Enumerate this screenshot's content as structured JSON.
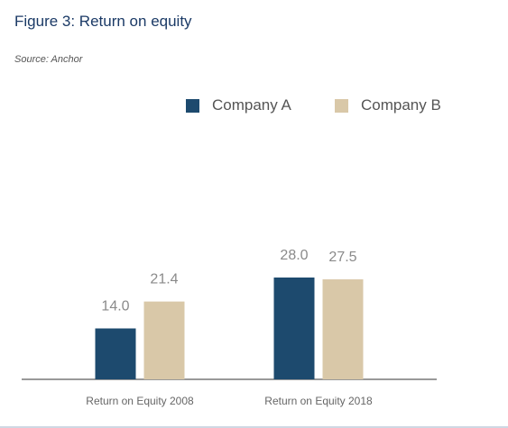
{
  "figure": {
    "title": "Figure 3: Return on equity",
    "source": "Source: Anchor"
  },
  "chart_data": {
    "type": "bar",
    "categories": [
      "Return on Equity 2008",
      "Return on Equity 2018"
    ],
    "series": [
      {
        "name": "Company A",
        "values": [
          14.0,
          28.0
        ],
        "color": "#1d4a6e"
      },
      {
        "name": "Company B",
        "values": [
          21.4,
          27.5
        ],
        "color": "#d9c8a8"
      }
    ],
    "data_labels": [
      [
        "14.0",
        "28.0"
      ],
      [
        "21.4",
        "27.5"
      ]
    ],
    "ylim": [
      0,
      28.0
    ],
    "grid": false,
    "legend_position": "top-right",
    "axis_color": "#999999",
    "label_color": "#8a8a8a"
  }
}
